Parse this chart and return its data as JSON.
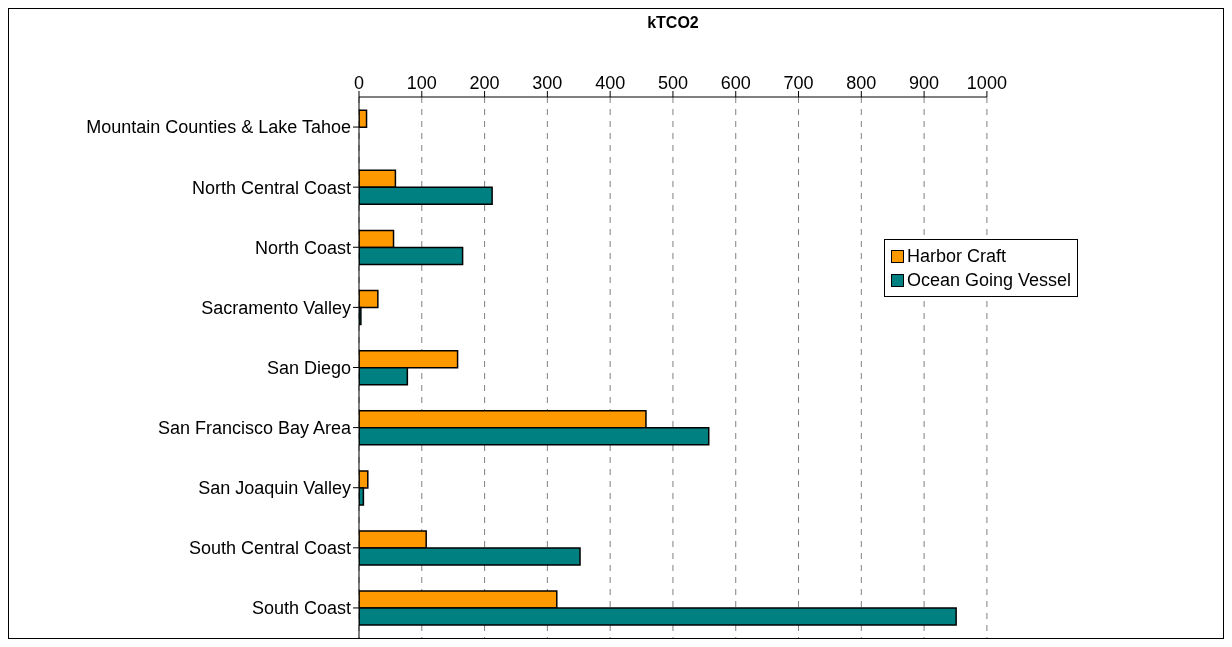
{
  "chart_data": {
    "type": "bar",
    "orientation": "horizontal",
    "xlabel": "kTCO2",
    "categories": [
      "Mountain Counties & Lake Tahoe",
      "North Central Coast",
      "North Coast",
      "Sacramento Valley",
      "San Diego",
      "San Francisco Bay Area",
      "San Joaquin Valley",
      "South Central Coast",
      "South Coast"
    ],
    "series": [
      {
        "name": "Harbor Craft",
        "color": "#ff9900",
        "values": [
          12,
          58,
          55,
          30,
          157,
          457,
          14,
          107,
          315
        ]
      },
      {
        "name": "Ocean Going Vessel",
        "color": "#008080",
        "values": [
          0,
          212,
          165,
          3,
          77,
          557,
          7,
          352,
          951
        ]
      }
    ],
    "xlim": [
      0,
      1000
    ],
    "xticks": [
      0,
      100,
      200,
      300,
      400,
      500,
      600,
      700,
      800,
      900,
      1000
    ],
    "grid": "x",
    "legend": "right"
  }
}
